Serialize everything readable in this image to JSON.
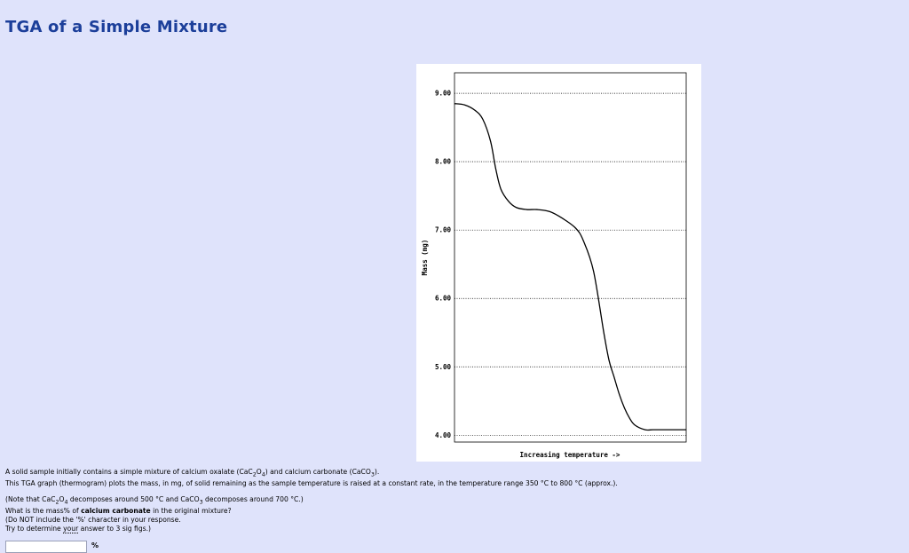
{
  "title": "TGA of a Simple Mixture",
  "chart_data": {
    "type": "line",
    "title": "",
    "xlabel": "Increasing temperature ->",
    "ylabel": "Mass (mg)",
    "ylim": [
      3.9,
      9.3
    ],
    "xlim": [
      350,
      800
    ],
    "y_ticks": [
      "9.00",
      "8.00",
      "7.00",
      "6.00",
      "5.00",
      "4.00"
    ],
    "y_tick_values": [
      9,
      8,
      7,
      6,
      5,
      4
    ],
    "grid": "horizontal dotted",
    "series": [
      {
        "color": "#000000",
        "x": [
          350,
          370,
          390,
          405,
          420,
          430,
          440,
          455,
          470,
          490,
          510,
          535,
          560,
          585,
          600,
          620,
          640,
          650,
          660,
          670,
          680,
          690,
          700,
          720,
          735,
          750,
          770,
          790,
          800
        ],
        "y": [
          8.85,
          8.83,
          8.75,
          8.62,
          8.3,
          7.9,
          7.6,
          7.42,
          7.33,
          7.3,
          7.3,
          7.27,
          7.17,
          7.03,
          6.85,
          6.4,
          5.5,
          5.1,
          4.85,
          4.6,
          4.4,
          4.25,
          4.15,
          4.08,
          4.08,
          4.08,
          4.08,
          4.08,
          4.08
        ]
      }
    ]
  },
  "question": {
    "intro_pre": "A solid sample initially contains a simple mixture of calcium oxalate (CaC",
    "intro_sub1": "2",
    "intro_mid1": "O",
    "intro_sub2": "4",
    "intro_mid2": ") and calcium carbonate (CaCO",
    "intro_sub3": "3",
    "intro_post": ").",
    "line2": "This TGA graph (thermogram) plots the mass, in mg, of solid remaining as the sample temperature is raised at a constant rate, in the temperature range 350 °C to 800 °C (approx.).",
    "note_pre": "(Note that CaC",
    "note_sub1": "2",
    "note_mid1": "O",
    "note_sub2": "4",
    "note_mid2": " decomposes around 500 °C and CaCO",
    "note_sub3": "3",
    "note_post": " decomposes around 700 °C.)",
    "ask_pre": "What is the mass% of ",
    "ask_bold": "calcium carbonate",
    "ask_post": " in the original mixture?",
    "hint1": "(Do NOT include the '%' character in your response.",
    "hint2_pre": "Try to determine ",
    "hint2_u": "your",
    "hint2_post": " answer to 3 sig figs.)",
    "answer_value": "",
    "unit": "%"
  }
}
